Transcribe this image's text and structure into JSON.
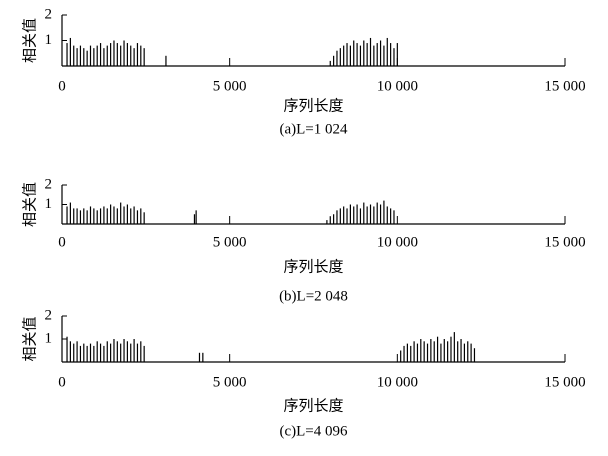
{
  "chart_data": [
    {
      "type": "stem",
      "caption": "(a)L=1 024",
      "xlabel": "序列长度",
      "ylabel": "相关值",
      "color": "#000000",
      "xlim": [
        0,
        15000
      ],
      "xticks": [
        0,
        {
          "value": 5000,
          "label": "5 000"
        },
        {
          "value": 10000,
          "label": "10 000"
        },
        {
          "value": 15000,
          "label": "15 000"
        }
      ],
      "ylim": [
        0,
        2
      ],
      "yticks": [
        1,
        2
      ],
      "x": [
        150,
        250,
        350,
        450,
        550,
        650,
        750,
        850,
        950,
        1050,
        1150,
        1250,
        1350,
        1450,
        1550,
        1650,
        1750,
        1850,
        1950,
        2050,
        2150,
        2250,
        2350,
        2450,
        3100,
        8000,
        8100,
        8200,
        8300,
        8400,
        8500,
        8600,
        8700,
        8800,
        8900,
        9000,
        9100,
        9200,
        9300,
        9400,
        9500,
        9600,
        9700,
        9800,
        9900,
        10000
      ],
      "values": [
        0.9,
        1.1,
        0.8,
        0.7,
        0.8,
        0.7,
        0.6,
        0.8,
        0.7,
        0.8,
        0.9,
        0.7,
        0.8,
        0.9,
        1.0,
        0.9,
        0.8,
        1.0,
        0.9,
        0.8,
        0.7,
        0.9,
        0.8,
        0.7,
        0.4,
        0.2,
        0.4,
        0.6,
        0.7,
        0.8,
        0.9,
        0.8,
        1.0,
        0.9,
        0.8,
        1.0,
        0.9,
        1.1,
        0.8,
        0.9,
        1.0,
        0.8,
        1.1,
        0.9,
        0.7,
        0.9
      ]
    },
    {
      "type": "stem",
      "caption": "(b)L=2 048",
      "xlabel": "序列长度",
      "ylabel": "相关值",
      "color": "#000000",
      "xlim": [
        0,
        15000
      ],
      "xticks": [
        0,
        {
          "value": 5000,
          "label": "5 000"
        },
        {
          "value": 10000,
          "label": "10 000"
        },
        {
          "value": 15000,
          "label": "15 000"
        }
      ],
      "ylim": [
        0,
        2
      ],
      "yticks": [
        1,
        2
      ],
      "x": [
        150,
        250,
        350,
        450,
        550,
        650,
        750,
        850,
        950,
        1050,
        1150,
        1250,
        1350,
        1450,
        1550,
        1650,
        1750,
        1850,
        1950,
        2050,
        2150,
        2250,
        2350,
        2450,
        3950,
        4000,
        7900,
        8000,
        8100,
        8200,
        8300,
        8400,
        8500,
        8600,
        8700,
        8800,
        8900,
        9000,
        9100,
        9200,
        9300,
        9400,
        9500,
        9600,
        9700,
        9800,
        9900
      ],
      "values": [
        0.9,
        1.1,
        0.8,
        0.8,
        0.7,
        0.8,
        0.7,
        0.9,
        0.8,
        0.7,
        0.8,
        0.9,
        0.8,
        1.0,
        0.9,
        0.8,
        1.1,
        0.9,
        1.0,
        0.8,
        0.9,
        0.7,
        0.8,
        0.6,
        0.5,
        0.7,
        0.2,
        0.4,
        0.5,
        0.7,
        0.8,
        0.9,
        0.8,
        1.0,
        0.9,
        1.0,
        0.8,
        1.1,
        0.9,
        1.0,
        0.9,
        1.1,
        1.0,
        1.2,
        0.9,
        0.8,
        0.7
      ]
    },
    {
      "type": "stem",
      "caption": "(c)L=4 096",
      "xlabel": "序列长度",
      "ylabel": "相关值",
      "color": "#000000",
      "xlim": [
        0,
        15000
      ],
      "xticks": [
        0,
        {
          "value": 5000,
          "label": "5 000"
        },
        {
          "value": 10000,
          "label": "10 000"
        },
        {
          "value": 15000,
          "label": "15 000"
        }
      ],
      "ylim": [
        0,
        2
      ],
      "yticks": [
        1,
        2
      ],
      "x": [
        150,
        250,
        350,
        450,
        550,
        650,
        750,
        850,
        950,
        1050,
        1150,
        1250,
        1350,
        1450,
        1550,
        1650,
        1750,
        1850,
        1950,
        2050,
        2150,
        2250,
        2350,
        2450,
        4100,
        4200,
        10100,
        10200,
        10300,
        10400,
        10500,
        10600,
        10700,
        10800,
        10900,
        11000,
        11100,
        11200,
        11300,
        11400,
        11500,
        11600,
        11700,
        11800,
        11900,
        12000,
        12100,
        12200,
        12300
      ],
      "values": [
        1.1,
        0.9,
        0.8,
        0.9,
        0.7,
        0.8,
        0.7,
        0.8,
        0.7,
        0.9,
        0.8,
        0.7,
        0.9,
        0.8,
        1.0,
        0.9,
        0.8,
        1.0,
        0.9,
        0.8,
        1.0,
        0.8,
        0.9,
        0.7,
        0.4,
        0.4,
        0.5,
        0.7,
        0.8,
        0.7,
        0.9,
        0.8,
        1.0,
        0.9,
        0.8,
        1.0,
        0.9,
        1.1,
        0.8,
        1.0,
        0.9,
        1.1,
        1.3,
        0.9,
        1.0,
        0.8,
        0.9,
        0.8,
        0.6
      ]
    }
  ]
}
